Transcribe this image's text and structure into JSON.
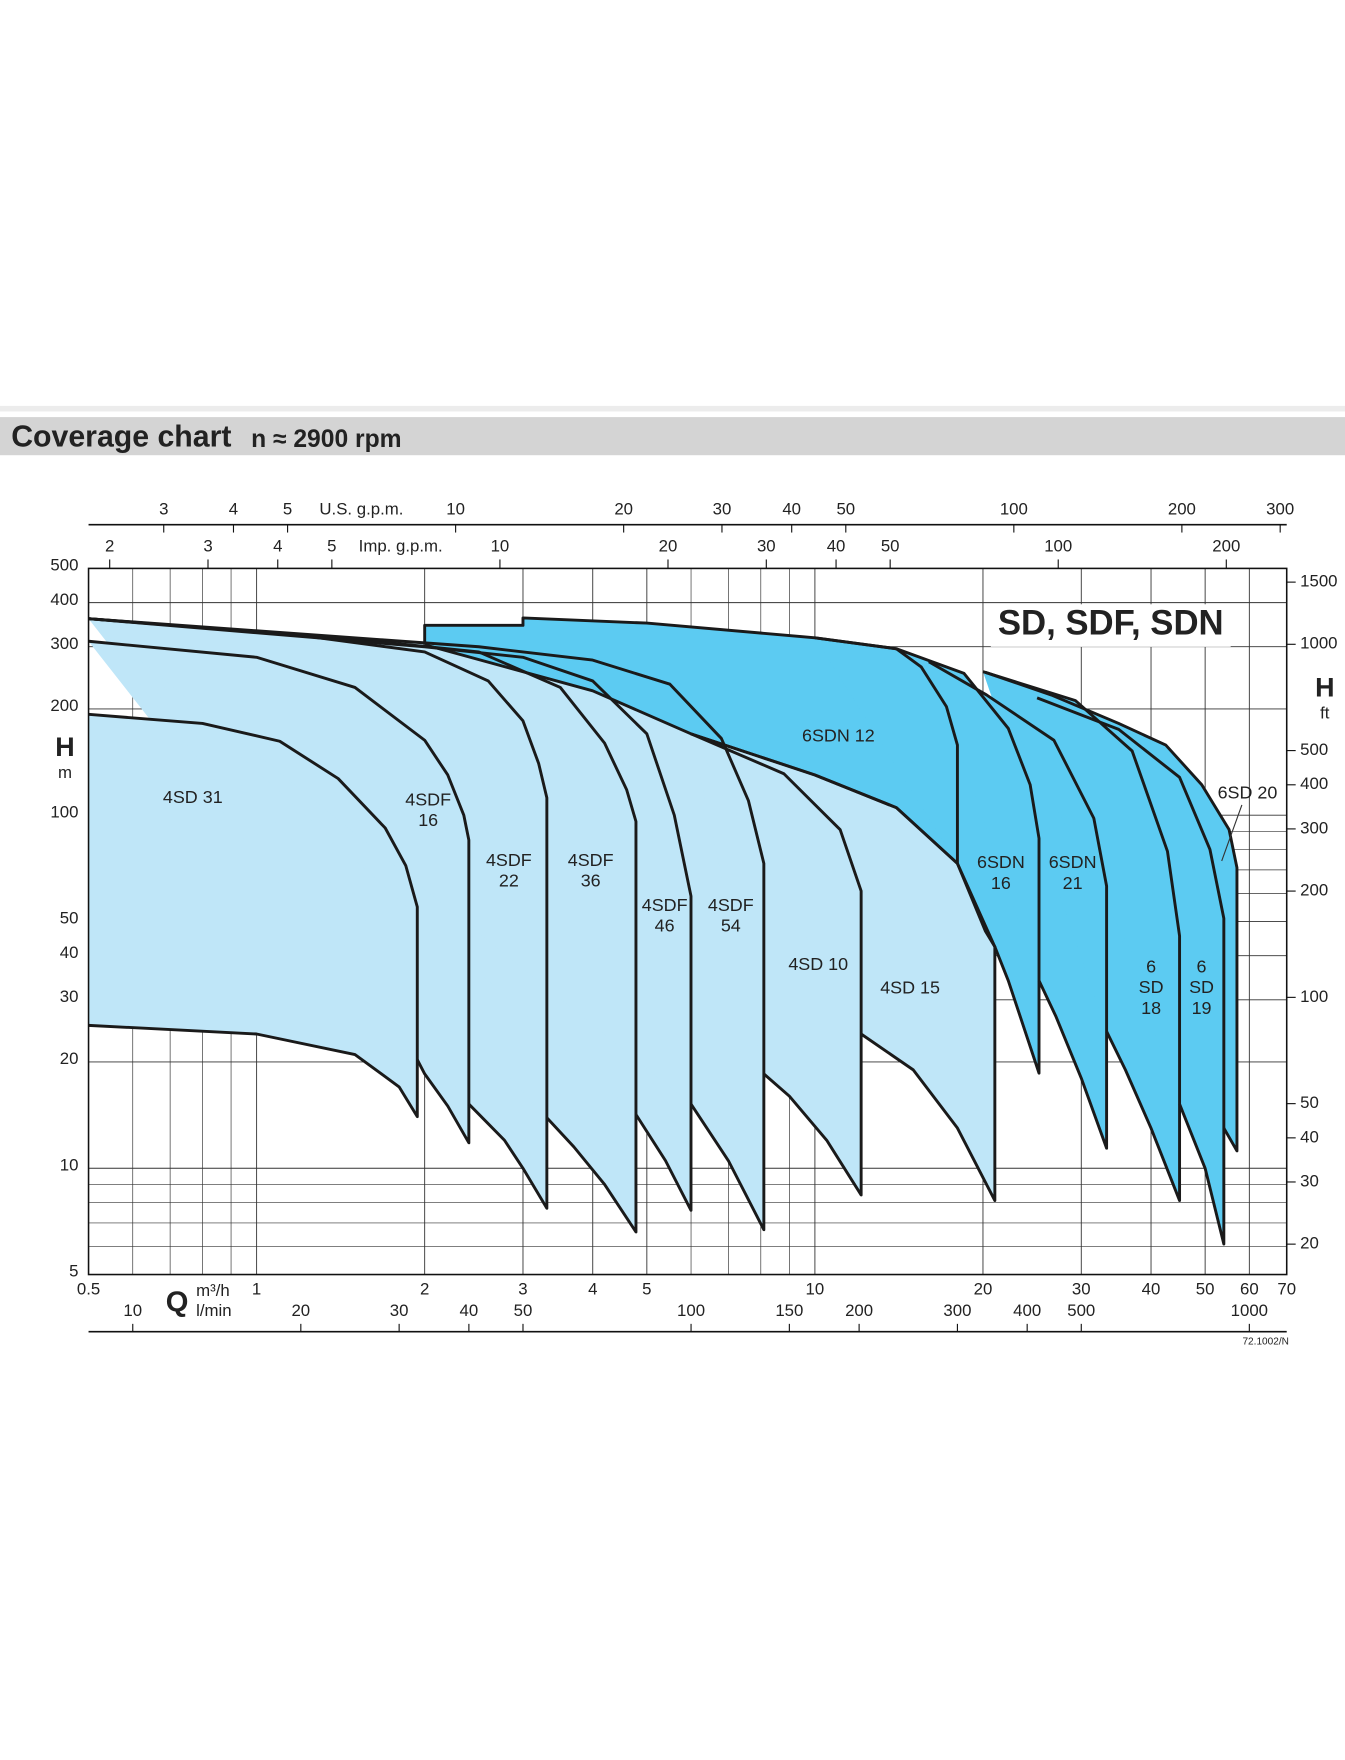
{
  "chart_data": {
    "type": "area",
    "title": "Coverage chart",
    "subtitle": "n ≈ 2900 rpm",
    "annotation": "SD, SDF, SDN",
    "footnote": "72.1002/N",
    "log_scale": true,
    "grid": true,
    "outline_color": "#1a1a1a",
    "xlabel": "Q",
    "xunit": "m³/h",
    "xlim": [
      0.5,
      70
    ],
    "xticks": [
      0.5,
      1,
      2,
      3,
      4,
      5,
      10,
      20,
      30,
      40,
      50,
      60,
      70
    ],
    "xgrid": [
      0.6,
      0.7,
      0.8,
      0.9,
      6,
      7,
      8,
      9
    ],
    "x2unit": "l/min",
    "x2lim": [
      8.333,
      1166.7
    ],
    "x2ticks": [
      10,
      20,
      30,
      40,
      50,
      100,
      150,
      200,
      300,
      400,
      500,
      1000
    ],
    "ylabel": "H",
    "yunit": "m",
    "ylim": [
      5,
      500
    ],
    "yticks": [
      5,
      10,
      20,
      30,
      40,
      50,
      100,
      200,
      300,
      400,
      500
    ],
    "ygrid": [
      6,
      7,
      8,
      9,
      60,
      70,
      80,
      90
    ],
    "y2label": "H",
    "y2unit": "ft",
    "y2lim": [
      16.404,
      1640.4
    ],
    "y2ticks": [
      20,
      30,
      40,
      50,
      100,
      200,
      300,
      400,
      500,
      1000,
      1500
    ],
    "top_axes": [
      {
        "label": "U.S. g.p.m.",
        "lim": [
          2.2,
          308.2
        ],
        "ticks": [
          3,
          4,
          5,
          10,
          20,
          30,
          40,
          50,
          100,
          200,
          300
        ]
      },
      {
        "label": "Imp. g.p.m.",
        "lim": [
          1.833,
          256.6
        ],
        "ticks": [
          2,
          3,
          4,
          5,
          10,
          20,
          30,
          40,
          50,
          100,
          200
        ]
      }
    ],
    "series": [
      {
        "name": "4SD 31",
        "color": "#bfe6f8",
        "x": [
          0.5,
          0.8,
          1.1,
          1.4,
          1.7,
          1.85,
          1.94,
          1.94,
          1.8,
          1.5,
          1.0,
          0.5
        ],
        "values": [
          193,
          182,
          162,
          127,
          92,
          72,
          55,
          14,
          17,
          21,
          24,
          25.4
        ]
      },
      {
        "name": "4SDF 16",
        "color": "#bfe6f8",
        "x": [
          0.5,
          1.0,
          1.5,
          2.0,
          2.2,
          2.35,
          2.4,
          2.4,
          2.2,
          2.0,
          1.94
        ],
        "values": [
          311,
          280,
          230,
          163,
          130,
          100,
          85,
          11.8,
          15,
          18.5,
          20.3
        ]
      },
      {
        "name": "4SDF 22",
        "color": "#bfe6f8",
        "x": [
          0.5,
          1.2,
          2.0,
          2.6,
          3.0,
          3.2,
          3.31,
          3.31,
          3.0,
          2.78,
          2.4
        ],
        "values": [
          360,
          323,
          290,
          240,
          185,
          140,
          112,
          7.7,
          10,
          12,
          15.2
        ]
      },
      {
        "name": "4SDF 36",
        "color": "#bfe6f8",
        "x": [
          0.5,
          1.5,
          2.5,
          3.5,
          4.2,
          4.6,
          4.78,
          4.78,
          4.2,
          3.7,
          3.31
        ],
        "values": [
          360,
          315,
          290,
          230,
          160,
          118,
          96,
          6.6,
          9,
          11.5,
          13.9
        ]
      },
      {
        "name": "4SDF 46",
        "color": "#bfe6f8",
        "x": [
          0.5,
          2.0,
          3.0,
          4.0,
          5.0,
          5.6,
          6.0,
          6.0,
          5.4,
          4.78
        ],
        "values": [
          360,
          300,
          280,
          240,
          170,
          100,
          59,
          7.6,
          10.5,
          14.2
        ]
      },
      {
        "name": "4SDF 54",
        "color": "#bfe6f8",
        "x": [
          0.5,
          2.5,
          4.0,
          5.5,
          6.8,
          7.6,
          8.1,
          8.1,
          7.0,
          6.0
        ],
        "values": [
          360,
          300,
          275,
          235,
          165,
          110,
          73,
          6.7,
          10.5,
          15.2
        ]
      },
      {
        "name": "4SD 10",
        "color": "#bfe6f8",
        "x": [
          6.0,
          8.8,
          11.1,
          12.1,
          12.1,
          10.5,
          9.0,
          8.1
        ],
        "values": [
          170,
          131,
          91,
          61,
          8.4,
          12,
          16,
          18.5
        ]
      },
      {
        "name": "4SD 15",
        "color": "#bfe6f8",
        "x": [
          6.0,
          10,
          14,
          18.0,
          20.2,
          21,
          21,
          18,
          15,
          12.1
        ],
        "values": [
          170,
          130,
          105,
          73,
          47,
          42.4,
          8.1,
          13,
          19,
          24
        ]
      },
      {
        "name": "6SDN 12",
        "color": "#5ccbf2",
        "x": [
          2.0,
          2.0,
          3.0,
          3.0,
          5.0,
          10,
          14,
          15.5,
          17.2,
          18.0,
          18.0,
          14,
          10,
          6.0,
          4.0,
          2.0
        ],
        "values": [
          304,
          345,
          345,
          362,
          350,
          318,
          296,
          263,
          203,
          158,
          73,
          105,
          130,
          170,
          225,
          304
        ]
      },
      {
        "name": "6SDN 16",
        "color": "#5ccbf2",
        "x": [
          10,
          14,
          18.5,
          22.2,
          24.3,
          25.2,
          25.2,
          22.2,
          21,
          18.0
        ],
        "values": [
          318,
          296,
          252,
          176,
          122,
          86,
          18.6,
          34,
          42.4,
          73
        ]
      },
      {
        "name": "6SDN 21",
        "color": "#5ccbf2",
        "x": [
          16,
          20.3,
          26.8,
          31.6,
          33.3,
          33.3,
          30,
          27,
          25.2
        ],
        "values": [
          272,
          219,
          163,
          98,
          63,
          11.4,
          18,
          27,
          34
        ]
      },
      {
        "name": "6 SD 18",
        "color": "#5ccbf2",
        "x": [
          20,
          29.3,
          37,
          42.8,
          45,
          45,
          40,
          36,
          33.3
        ],
        "values": [
          255,
          211,
          152,
          79,
          45.5,
          8.1,
          13,
          19,
          24.4
        ]
      },
      {
        "name": "6 SD 19",
        "color": "#5ccbf2",
        "x": [
          25,
          35,
          45,
          51,
          54,
          54,
          50,
          45
        ],
        "values": [
          215,
          175,
          128,
          80,
          51,
          6.1,
          10,
          15.2
        ]
      },
      {
        "name": "6SD 20",
        "color": "#5ccbf2",
        "x": [
          20.2,
          26.5,
          35,
          42.5,
          49.3,
          55.2,
          57,
          57,
          54
        ],
        "values": [
          254,
          219,
          182,
          158,
          122,
          91,
          71,
          11.2,
          13
        ]
      }
    ]
  }
}
